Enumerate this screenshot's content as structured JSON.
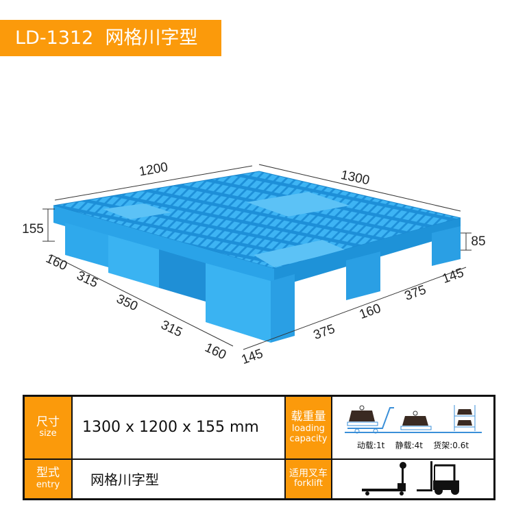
{
  "banner": {
    "model": "LD-1312",
    "type": "网格川字型",
    "color": "#fb9a0b"
  },
  "diagram": {
    "pallet_color": "#33aef0",
    "dimensions": {
      "width": "1200",
      "length": "1300",
      "height": "155",
      "leg_height": "85",
      "side_a": [
        "160",
        "315",
        "350",
        "315",
        "160"
      ],
      "side_b": [
        "145",
        "375",
        "160",
        "375",
        "145"
      ]
    }
  },
  "spec": {
    "size_label_zh": "尺寸",
    "size_label_en": "size",
    "size_value": "1300 x 1200 x 155 mm",
    "load_label_zh": "载重量",
    "load_label_en1": "loading",
    "load_label_en2": "capacity",
    "loads": [
      "动载:1t",
      "静载:4t",
      "货架:0.6t"
    ],
    "entry_label_zh": "型式",
    "entry_label_en": "entry",
    "entry_value": "网格川字型",
    "forklift_label_zh": "适用叉车",
    "forklift_label_en": "forklift"
  }
}
